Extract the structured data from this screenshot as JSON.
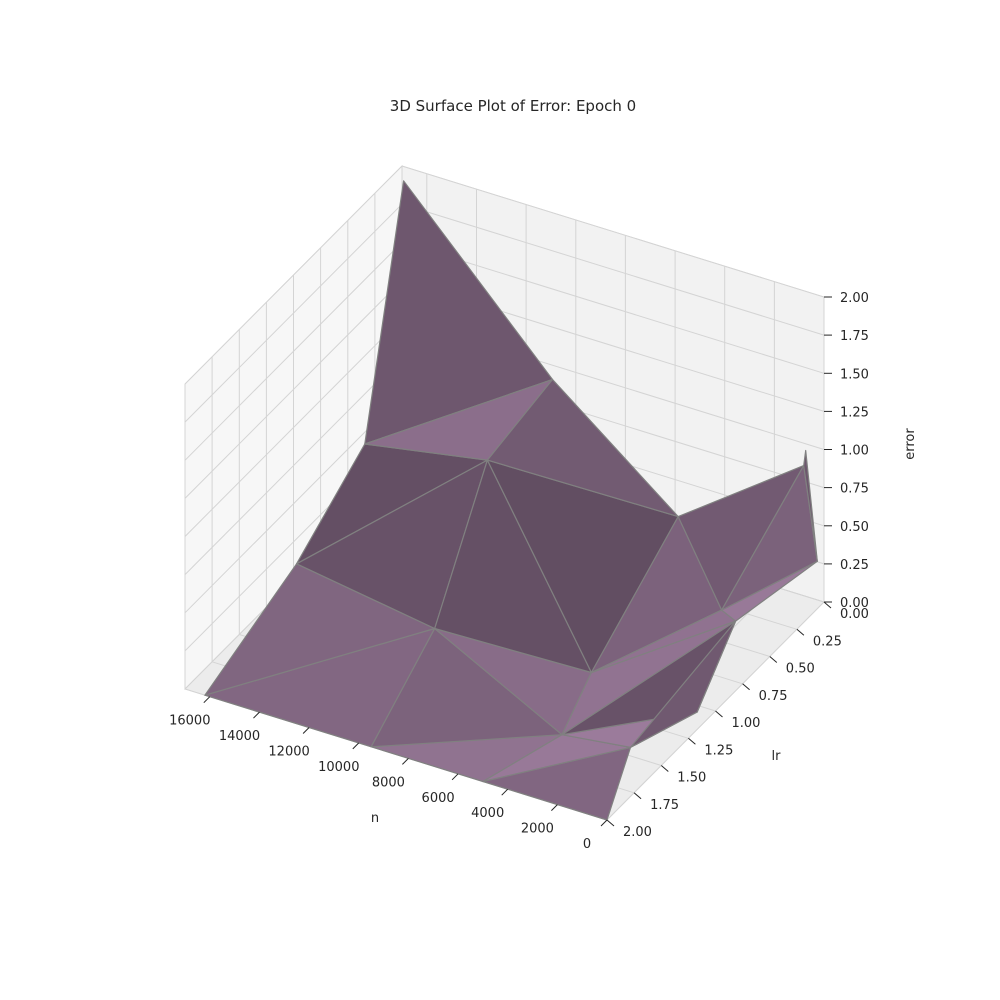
{
  "chart_data": {
    "type": "surface3d",
    "title": "3D Surface Plot of Error: Epoch 0",
    "xlabel": "n",
    "ylabel": "lr",
    "zlabel": "error",
    "xlim": [
      0,
      17000
    ],
    "ylim": [
      0,
      2
    ],
    "zlim": [
      0,
      2
    ],
    "x_ticks": [
      0,
      2000,
      4000,
      6000,
      8000,
      10000,
      12000,
      14000,
      16000
    ],
    "x_tick_labels": [
      "0",
      "2000",
      "4000",
      "6000",
      "8000",
      "10000",
      "12000",
      "14000",
      "16000"
    ],
    "y_ticks": [
      0,
      0.25,
      0.5,
      0.75,
      1.0,
      1.25,
      1.5,
      1.75,
      2.0
    ],
    "y_tick_labels": [
      "0.00",
      "0.25",
      "0.50",
      "0.75",
      "1.00",
      "1.25",
      "1.50",
      "1.75",
      "2.00"
    ],
    "z_ticks": [
      0,
      0.25,
      0.5,
      0.75,
      1.0,
      1.25,
      1.5,
      1.75,
      2.0
    ],
    "z_tick_labels": [
      "0.00",
      "0.25",
      "0.50",
      "0.75",
      "1.00",
      "1.25",
      "1.50",
      "1.75",
      "2.00"
    ],
    "grid": true,
    "surface_color": "#a07fa0",
    "edge_color": "#808080",
    "points": [
      {
        "n": 16500,
        "lr": 0.1,
        "error": 2.0
      },
      {
        "n": 15000,
        "lr": 0.8,
        "error": 0.85
      },
      {
        "n": 16000,
        "lr": 1.2,
        "error": 0.3
      },
      {
        "n": 16200,
        "lr": 2.0,
        "error": 0.0
      },
      {
        "n": 10500,
        "lr": 0.1,
        "error": 1.0
      },
      {
        "n": 10500,
        "lr": 0.7,
        "error": 0.9
      },
      {
        "n": 10000,
        "lr": 1.3,
        "error": 0.25
      },
      {
        "n": 9500,
        "lr": 2.0,
        "error": 0.0
      },
      {
        "n": 5000,
        "lr": 0.2,
        "error": 0.45
      },
      {
        "n": 5000,
        "lr": 1.0,
        "error": 0.0
      },
      {
        "n": 4000,
        "lr": 1.5,
        "error": 0.0
      },
      {
        "n": 5000,
        "lr": 2.0,
        "error": 0.0
      },
      {
        "n": 600,
        "lr": 0.05,
        "error": 0.9
      },
      {
        "n": 300,
        "lr": 0.1,
        "error": 1.05
      },
      {
        "n": 50,
        "lr": 0.05,
        "error": 0.3
      },
      {
        "n": 1500,
        "lr": 0.6,
        "error": 0.3
      },
      {
        "n": 500,
        "lr": 0.7,
        "error": 0.35
      },
      {
        "n": 300,
        "lr": 1.1,
        "error": 0.05
      },
      {
        "n": 800,
        "lr": 1.6,
        "error": 0.15
      },
      {
        "n": 0,
        "lr": 2.0,
        "error": 0.0
      }
    ],
    "triangles": [
      [
        0,
        4,
        1
      ],
      [
        4,
        5,
        1
      ],
      [
        1,
        5,
        2
      ],
      [
        5,
        6,
        2
      ],
      [
        2,
        6,
        3
      ],
      [
        6,
        7,
        3
      ],
      [
        4,
        8,
        5
      ],
      [
        8,
        9,
        5
      ],
      [
        5,
        9,
        6
      ],
      [
        9,
        10,
        6
      ],
      [
        6,
        10,
        7
      ],
      [
        10,
        11,
        7
      ],
      [
        8,
        12,
        15
      ],
      [
        8,
        15,
        9
      ],
      [
        15,
        16,
        9
      ],
      [
        9,
        16,
        10
      ],
      [
        16,
        17,
        10
      ],
      [
        10,
        17,
        18
      ],
      [
        10,
        18,
        11
      ],
      [
        18,
        19,
        11
      ],
      [
        12,
        13,
        14
      ],
      [
        12,
        14,
        15
      ],
      [
        14,
        16,
        15
      ],
      [
        16,
        18,
        17
      ]
    ]
  }
}
